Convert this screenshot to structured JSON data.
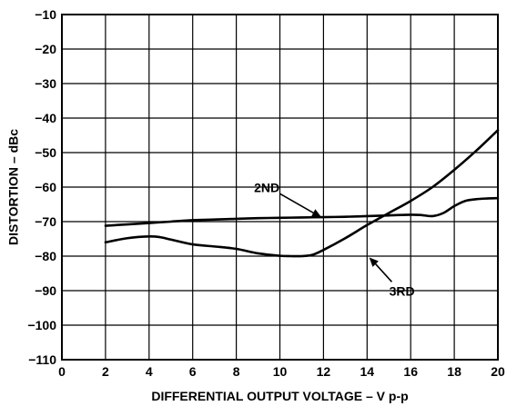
{
  "chart_data": {
    "type": "line",
    "title": "",
    "xlabel": "DIFFERENTIAL OUTPUT VOLTAGE – V p-p",
    "ylabel": "DISTORTION – dBc",
    "xlim": [
      0,
      20
    ],
    "ylim": [
      -110,
      -10
    ],
    "xticks": [
      0,
      2,
      4,
      6,
      8,
      10,
      12,
      14,
      16,
      18,
      20
    ],
    "yticks": [
      -10,
      -20,
      -30,
      -40,
      -50,
      -60,
      -70,
      -80,
      -90,
      -100,
      -110
    ],
    "grid": true,
    "series": [
      {
        "name": "2ND",
        "x": [
          2,
          3,
          4,
          5,
          6,
          7,
          8,
          9,
          10,
          11,
          12,
          13,
          14,
          15,
          16,
          16.5,
          17,
          17.5,
          18,
          18.5,
          19,
          19.5,
          20
        ],
        "y": [
          -71.2,
          -70.8,
          -70.4,
          -70.0,
          -69.6,
          -69.4,
          -69.2,
          -69.0,
          -68.9,
          -68.8,
          -68.7,
          -68.6,
          -68.4,
          -68.2,
          -68.0,
          -68.1,
          -68.4,
          -67.5,
          -65.5,
          -64.0,
          -63.5,
          -63.3,
          -63.2
        ]
      },
      {
        "name": "3RD",
        "x": [
          2,
          3,
          4,
          4.5,
          5,
          6,
          7,
          8,
          9,
          10,
          10.5,
          11,
          11.5,
          12,
          13,
          14,
          15,
          16,
          17,
          18,
          19,
          20
        ],
        "y": [
          -76.0,
          -74.8,
          -74.3,
          -74.5,
          -75.2,
          -76.6,
          -77.2,
          -77.9,
          -79.2,
          -79.9,
          -80.0,
          -80.0,
          -79.6,
          -78.2,
          -74.8,
          -71.0,
          -67.5,
          -64.0,
          -60.0,
          -55.0,
          -49.5,
          -43.5
        ]
      }
    ],
    "annotations": [
      {
        "text": "2ND",
        "x": 9.4,
        "y": -61.4,
        "arrow_to": [
          11.9,
          -68.7
        ]
      },
      {
        "text": "3RD",
        "x": 15.6,
        "y": -91.4,
        "arrow_to": [
          14.1,
          -80.4
        ]
      }
    ]
  }
}
